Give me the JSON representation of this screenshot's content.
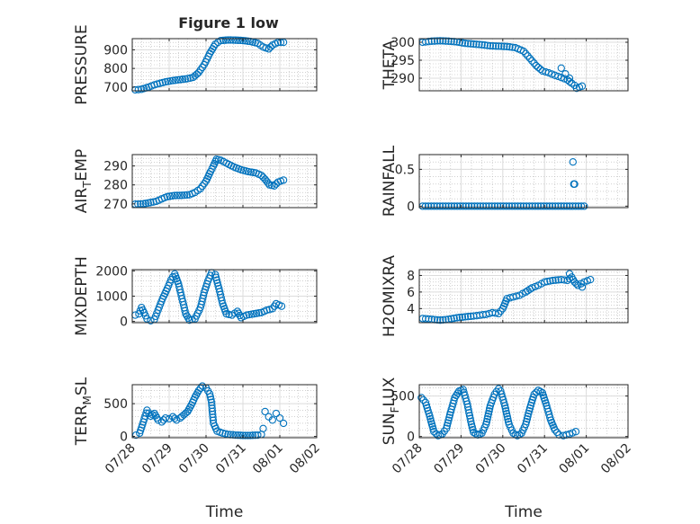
{
  "figure": {
    "title": "Figure 1 low"
  },
  "colors": {
    "marker": "#0072BD",
    "axis": "#262626",
    "grid": "#dcdcdc",
    "minor_grid": "#b4b4b4"
  },
  "chart_data": [
    {
      "type": "scatter",
      "id": "pressure",
      "ylabel": "PRESSURE",
      "title": "Figure 1 low",
      "ylim": [
        680,
        960
      ],
      "yticks": [
        700,
        800,
        900
      ],
      "ytick_labels": [
        "700",
        "800",
        "900"
      ],
      "xlim": [
        0,
        5
      ],
      "xticks": [
        0,
        1,
        2,
        3,
        4,
        5
      ],
      "xtick_labels": [],
      "xlabel": "",
      "segments": [
        [
          0.08,
          685
        ],
        [
          0.25,
          688
        ],
        [
          0.45,
          700
        ],
        [
          0.6,
          712
        ],
        [
          0.75,
          720
        ],
        [
          0.9,
          728
        ],
        [
          1.1,
          735
        ],
        [
          1.3,
          740
        ],
        [
          1.5,
          745
        ],
        [
          1.65,
          752
        ],
        [
          1.8,
          778
        ],
        [
          1.95,
          820
        ],
        [
          2.1,
          880
        ],
        [
          2.25,
          930
        ],
        [
          2.4,
          950
        ],
        [
          2.6,
          953
        ],
        [
          2.8,
          952
        ],
        [
          3.0,
          950
        ],
        [
          3.2,
          945
        ],
        [
          3.4,
          935
        ],
        [
          3.55,
          915
        ],
        [
          3.7,
          905
        ],
        [
          3.8,
          925
        ],
        [
          3.95,
          940
        ],
        [
          4.1,
          940
        ]
      ]
    },
    {
      "type": "scatter",
      "id": "theta",
      "ylabel": "THETA",
      "ylim": [
        286.5,
        301
      ],
      "yticks": [
        290,
        295,
        300
      ],
      "ytick_labels": [
        "290",
        "295",
        "300"
      ],
      "xlim": [
        0,
        5
      ],
      "xticks": [
        0,
        1,
        2,
        3,
        4,
        5
      ],
      "xtick_labels": [],
      "xlabel": "",
      "segments": [
        [
          0.08,
          300
        ],
        [
          0.3,
          300.3
        ],
        [
          0.5,
          300.4
        ],
        [
          0.7,
          300.3
        ],
        [
          0.9,
          300.1
        ],
        [
          1.1,
          299.7
        ],
        [
          1.3,
          299.5
        ],
        [
          1.5,
          299.3
        ],
        [
          1.7,
          299.0
        ],
        [
          1.9,
          298.9
        ],
        [
          2.1,
          298.8
        ],
        [
          2.3,
          298.5
        ],
        [
          2.5,
          297.5
        ],
        [
          2.65,
          295.5
        ],
        [
          2.8,
          293.5
        ],
        [
          2.95,
          292.0
        ],
        [
          3.1,
          291.5
        ],
        [
          3.25,
          290.8
        ],
        [
          3.4,
          290.2
        ],
        [
          3.55,
          289.5
        ],
        [
          3.65,
          288.6
        ],
        [
          3.72,
          288.0
        ],
        [
          3.77,
          287.2
        ],
        [
          3.9,
          287.8
        ]
      ],
      "points": [
        [
          3.4,
          292.8
        ],
        [
          3.5,
          291.2
        ],
        [
          3.6,
          290.0
        ]
      ]
    },
    {
      "type": "scatter",
      "id": "air_temp",
      "ylabel": "AIR_TEMP",
      "ylabel_main": "AIR",
      "ylabel_sub": "T",
      "ylabel_rest": "EMP",
      "ylim": [
        268,
        296
      ],
      "yticks": [
        270,
        280,
        290
      ],
      "ytick_labels": [
        "270",
        "280",
        "290"
      ],
      "xlim": [
        0,
        5
      ],
      "xticks": [
        0,
        1,
        2,
        3,
        4,
        5
      ],
      "xtick_labels": [],
      "xlabel": "",
      "segments": [
        [
          0.08,
          269.8
        ],
        [
          0.3,
          270.0
        ],
        [
          0.5,
          270.7
        ],
        [
          0.65,
          271.3
        ],
        [
          0.8,
          272.6
        ],
        [
          0.95,
          273.8
        ],
        [
          1.15,
          274.4
        ],
        [
          1.35,
          274.5
        ],
        [
          1.55,
          274.8
        ],
        [
          1.7,
          276.0
        ],
        [
          1.85,
          278.0
        ],
        [
          2.0,
          282.0
        ],
        [
          2.12,
          287.0
        ],
        [
          2.2,
          290.0
        ],
        [
          2.28,
          293.5
        ],
        [
          2.4,
          293.0
        ],
        [
          2.55,
          291.5
        ],
        [
          2.75,
          289.5
        ],
        [
          2.95,
          288.0
        ],
        [
          3.15,
          287.0
        ],
        [
          3.35,
          286.3
        ],
        [
          3.5,
          285.0
        ],
        [
          3.6,
          283.0
        ],
        [
          3.72,
          280.0
        ],
        [
          3.85,
          279.5
        ],
        [
          3.95,
          281.5
        ],
        [
          4.1,
          282.5
        ]
      ]
    },
    {
      "type": "scatter",
      "id": "rainfall",
      "ylabel": "RAINFALL",
      "ylim": [
        -0.02,
        0.7
      ],
      "yticks": [
        0,
        0.5
      ],
      "ytick_labels": [
        "0",
        "0.5"
      ],
      "xlim": [
        0,
        5
      ],
      "xticks": [
        0,
        1,
        2,
        3,
        4,
        5
      ],
      "xtick_labels": [],
      "xlabel": "",
      "segments": [
        [
          0.08,
          0
        ],
        [
          3.95,
          0
        ]
      ],
      "points": [
        [
          3.68,
          0.6
        ],
        [
          3.7,
          0.3
        ],
        [
          3.72,
          0.3
        ]
      ]
    },
    {
      "type": "scatter",
      "id": "mixdepth",
      "ylabel": "MIXDEPTH",
      "ylim": [
        -50,
        2050
      ],
      "yticks": [
        0,
        1000,
        2000
      ],
      "ytick_labels": [
        "0",
        "1000",
        "2000"
      ],
      "xlim": [
        0,
        5
      ],
      "xticks": [
        0,
        1,
        2,
        3,
        4,
        5
      ],
      "xtick_labels": [],
      "xlabel": "",
      "segments": [
        [
          0.08,
          250
        ],
        [
          0.18,
          300
        ],
        [
          0.25,
          550
        ],
        [
          0.32,
          350
        ],
        [
          0.4,
          100
        ],
        [
          0.5,
          30
        ],
        [
          0.6,
          80
        ],
        [
          0.7,
          450
        ],
        [
          0.82,
          900
        ],
        [
          0.95,
          1300
        ],
        [
          1.05,
          1650
        ],
        [
          1.15,
          1880
        ],
        [
          1.25,
          1500
        ],
        [
          1.35,
          900
        ],
        [
          1.45,
          300
        ],
        [
          1.55,
          50
        ],
        [
          1.7,
          100
        ],
        [
          1.85,
          550
        ],
        [
          1.95,
          1150
        ],
        [
          2.05,
          1600
        ],
        [
          2.15,
          1930
        ],
        [
          2.25,
          1850
        ],
        [
          2.35,
          1300
        ],
        [
          2.45,
          700
        ],
        [
          2.55,
          300
        ],
        [
          2.7,
          250
        ],
        [
          2.85,
          400
        ],
        [
          2.95,
          150
        ],
        [
          3.1,
          250
        ],
        [
          3.3,
          300
        ],
        [
          3.5,
          350
        ],
        [
          3.65,
          450
        ],
        [
          3.8,
          500
        ],
        [
          3.9,
          700
        ],
        [
          4.05,
          600
        ]
      ]
    },
    {
      "type": "scatter",
      "id": "h2omixra",
      "ylabel": "H2OMIXRA",
      "ylim": [
        2.3,
        8.7
      ],
      "yticks": [
        4,
        6,
        8
      ],
      "ytick_labels": [
        "4",
        "6",
        "8"
      ],
      "xlim": [
        0,
        5
      ],
      "xticks": [
        0,
        1,
        2,
        3,
        4,
        5
      ],
      "xtick_labels": [],
      "xlabel": "",
      "segments": [
        [
          0.08,
          2.8
        ],
        [
          0.3,
          2.7
        ],
        [
          0.5,
          2.6
        ],
        [
          0.7,
          2.7
        ],
        [
          0.9,
          2.9
        ],
        [
          1.1,
          3.0
        ],
        [
          1.3,
          3.1
        ],
        [
          1.45,
          3.2
        ],
        [
          1.6,
          3.3
        ],
        [
          1.75,
          3.5
        ],
        [
          1.9,
          3.4
        ],
        [
          2.0,
          4.0
        ],
        [
          2.1,
          5.2
        ],
        [
          2.25,
          5.4
        ],
        [
          2.4,
          5.6
        ],
        [
          2.55,
          6.0
        ],
        [
          2.7,
          6.5
        ],
        [
          2.85,
          6.8
        ],
        [
          3.0,
          7.2
        ],
        [
          3.2,
          7.4
        ],
        [
          3.4,
          7.5
        ],
        [
          3.55,
          7.4
        ],
        [
          3.65,
          7.8
        ],
        [
          3.72,
          7.2
        ],
        [
          3.8,
          6.8
        ],
        [
          3.95,
          7.2
        ],
        [
          4.1,
          7.5
        ]
      ],
      "points": [
        [
          3.6,
          8.2
        ],
        [
          3.9,
          6.6
        ]
      ]
    },
    {
      "type": "scatter",
      "id": "terr_msl",
      "ylabel": "TERR_MSL",
      "ylabel_main": "TERR",
      "ylabel_sub": "M",
      "ylabel_rest": "SL",
      "ylim": [
        -20,
        790
      ],
      "yticks": [
        0,
        500
      ],
      "ytick_labels": [
        "0",
        "500"
      ],
      "xlim": [
        0,
        5
      ],
      "xticks": [
        0,
        1,
        2,
        3,
        4,
        5
      ],
      "xtick_labels": [
        "07/28",
        "07/29",
        "07/30",
        "07/31",
        "08/01",
        "08/02"
      ],
      "xlabel": "Time",
      "segments": [
        [
          0.1,
          20
        ],
        [
          0.2,
          50
        ],
        [
          0.3,
          220
        ],
        [
          0.4,
          400
        ],
        [
          0.5,
          310
        ],
        [
          0.6,
          350
        ],
        [
          0.7,
          250
        ],
        [
          0.8,
          220
        ],
        [
          0.9,
          280
        ],
        [
          1.0,
          270
        ],
        [
          1.1,
          300
        ],
        [
          1.2,
          250
        ],
        [
          1.3,
          280
        ],
        [
          1.4,
          330
        ],
        [
          1.5,
          380
        ],
        [
          1.6,
          480
        ],
        [
          1.7,
          600
        ],
        [
          1.8,
          700
        ],
        [
          1.9,
          770
        ],
        [
          2.0,
          740
        ],
        [
          2.1,
          650
        ],
        [
          2.15,
          520
        ],
        [
          2.2,
          200
        ],
        [
          2.3,
          80
        ],
        [
          2.45,
          50
        ],
        [
          2.6,
          30
        ],
        [
          2.8,
          20
        ],
        [
          3.0,
          15
        ],
        [
          3.2,
          15
        ],
        [
          3.4,
          20
        ],
        [
          3.5,
          30
        ]
      ],
      "points": [
        [
          3.6,
          380
        ],
        [
          3.7,
          300
        ],
        [
          3.8,
          250
        ],
        [
          3.9,
          350
        ],
        [
          4.0,
          280
        ],
        [
          4.1,
          200
        ],
        [
          3.55,
          120
        ]
      ]
    },
    {
      "type": "scatter",
      "id": "sun_flux",
      "ylabel": "SUN_FLUX",
      "ylabel_main": "SUN",
      "ylabel_sub": "F",
      "ylabel_rest": "LUX",
      "ylim": [
        -15,
        640
      ],
      "yticks": [
        0,
        500
      ],
      "ytick_labels": [
        "0",
        "500"
      ],
      "xlim": [
        0,
        5
      ],
      "xticks": [
        0,
        1,
        2,
        3,
        4,
        5
      ],
      "xtick_labels": [
        "07/28",
        "07/29",
        "07/30",
        "07/31",
        "08/01",
        "08/02"
      ],
      "xlabel": "Time",
      "segments": [
        [
          0.05,
          480
        ],
        [
          0.15,
          420
        ],
        [
          0.25,
          250
        ],
        [
          0.35,
          60
        ],
        [
          0.45,
          10
        ],
        [
          0.55,
          30
        ],
        [
          0.65,
          100
        ],
        [
          0.75,
          300
        ],
        [
          0.85,
          480
        ],
        [
          0.95,
          560
        ],
        [
          1.05,
          580
        ],
        [
          1.15,
          400
        ],
        [
          1.25,
          150
        ],
        [
          1.3,
          50
        ],
        [
          1.4,
          20
        ],
        [
          1.5,
          40
        ],
        [
          1.6,
          150
        ],
        [
          1.7,
          380
        ],
        [
          1.8,
          520
        ],
        [
          1.9,
          590
        ],
        [
          1.95,
          560
        ],
        [
          2.05,
          380
        ],
        [
          2.15,
          150
        ],
        [
          2.25,
          40
        ],
        [
          2.35,
          10
        ],
        [
          2.45,
          40
        ],
        [
          2.55,
          150
        ],
        [
          2.65,
          350
        ],
        [
          2.75,
          520
        ],
        [
          2.85,
          570
        ],
        [
          2.95,
          540
        ],
        [
          3.05,
          380
        ],
        [
          3.15,
          200
        ],
        [
          3.25,
          80
        ],
        [
          3.35,
          20
        ],
        [
          3.45,
          10
        ],
        [
          3.6,
          30
        ],
        [
          3.75,
          60
        ]
      ]
    }
  ]
}
